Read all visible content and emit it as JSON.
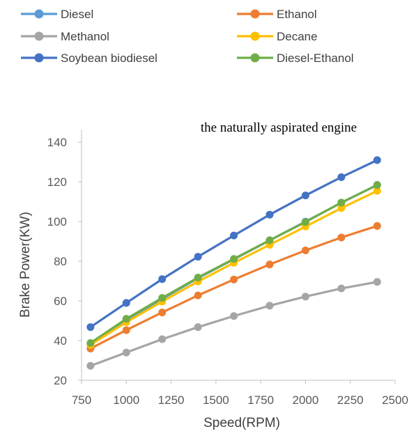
{
  "chart_data": {
    "type": "line",
    "title": "the naturally aspirated engine",
    "xlabel": "Speed(RPM)",
    "ylabel": "Brake Power(KW)",
    "xlim": [
      750,
      2500
    ],
    "ylim": [
      20,
      145
    ],
    "x_ticks": [
      750,
      1000,
      1250,
      1500,
      1750,
      2000,
      2250,
      2500
    ],
    "y_ticks": [
      20,
      40,
      60,
      80,
      100,
      120,
      140
    ],
    "grid": false,
    "legend_position": "top",
    "x": [
      800,
      1000,
      1200,
      1400,
      1600,
      1800,
      2000,
      2200,
      2400
    ],
    "series": [
      {
        "name": "Diesel",
        "color": "#5b9bd5",
        "values": [
          38.5,
          50.5,
          61,
          71.5,
          81,
          90.5,
          100,
          109.5,
          118.5
        ]
      },
      {
        "name": "Ethanol",
        "color": "#ed7d31",
        "values": [
          36,
          45.3,
          54.2,
          62.8,
          70.8,
          78.4,
          85.5,
          92,
          97.8
        ]
      },
      {
        "name": "Methanol",
        "color": "#a5a5a5",
        "values": [
          27.3,
          34,
          40.7,
          46.8,
          52.4,
          57.6,
          62.2,
          66.3,
          69.6
        ]
      },
      {
        "name": "Decane",
        "color": "#ffc000",
        "values": [
          37.8,
          49.3,
          59.7,
          69.8,
          79.2,
          88.3,
          97.5,
          106.8,
          115.5
        ]
      },
      {
        "name": "Soybean biodiesel",
        "color": "#4472c4",
        "values": [
          46.8,
          59,
          71,
          82.3,
          93,
          103.5,
          113.2,
          122.4,
          131
        ]
      },
      {
        "name": "Diesel-Ethanol",
        "color": "#70ad47",
        "values": [
          38.8,
          51,
          61.5,
          71.8,
          81.2,
          90.6,
          99.8,
          109.6,
          118.4
        ]
      }
    ]
  }
}
